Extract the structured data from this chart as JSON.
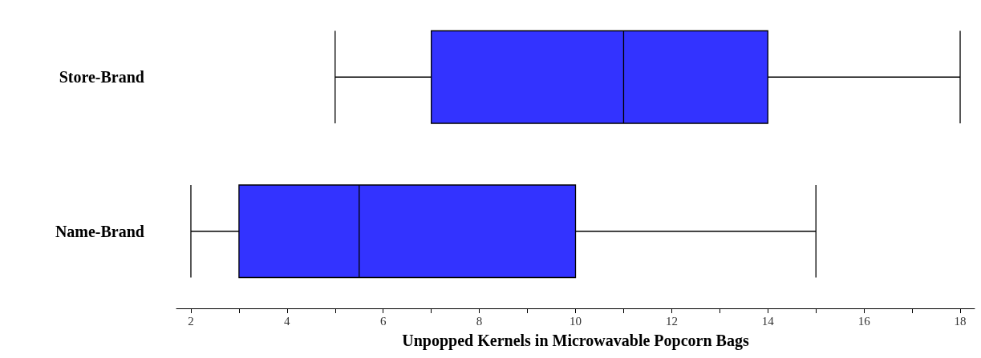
{
  "chart_data": {
    "type": "box",
    "orientation": "horizontal",
    "categories": [
      "Store-Brand",
      "Name-Brand"
    ],
    "series": [
      {
        "color": "#3333ff",
        "boxes": [
          {
            "low": 5,
            "q1": 7,
            "median": 11,
            "q3": 14,
            "high": 18
          },
          {
            "low": 2,
            "q1": 3,
            "median": 5.5,
            "q3": 10,
            "high": 15
          }
        ]
      }
    ],
    "xlabel": "Unpopped Kernels in Microwavable Popcorn Bags",
    "xlim": [
      1.7,
      18.3
    ],
    "xticks": [
      2,
      {
        "value": 3,
        "label": null
      },
      4,
      {
        "value": 5,
        "label": null
      },
      6,
      {
        "value": 7,
        "label": null
      },
      8,
      {
        "value": 9,
        "label": null
      },
      10,
      {
        "value": 11,
        "label": null
      },
      12,
      {
        "value": 13,
        "label": null
      },
      14,
      {
        "value": 15,
        "label": null
      },
      16,
      {
        "value": 17,
        "label": null
      },
      18
    ],
    "grid": false
  }
}
